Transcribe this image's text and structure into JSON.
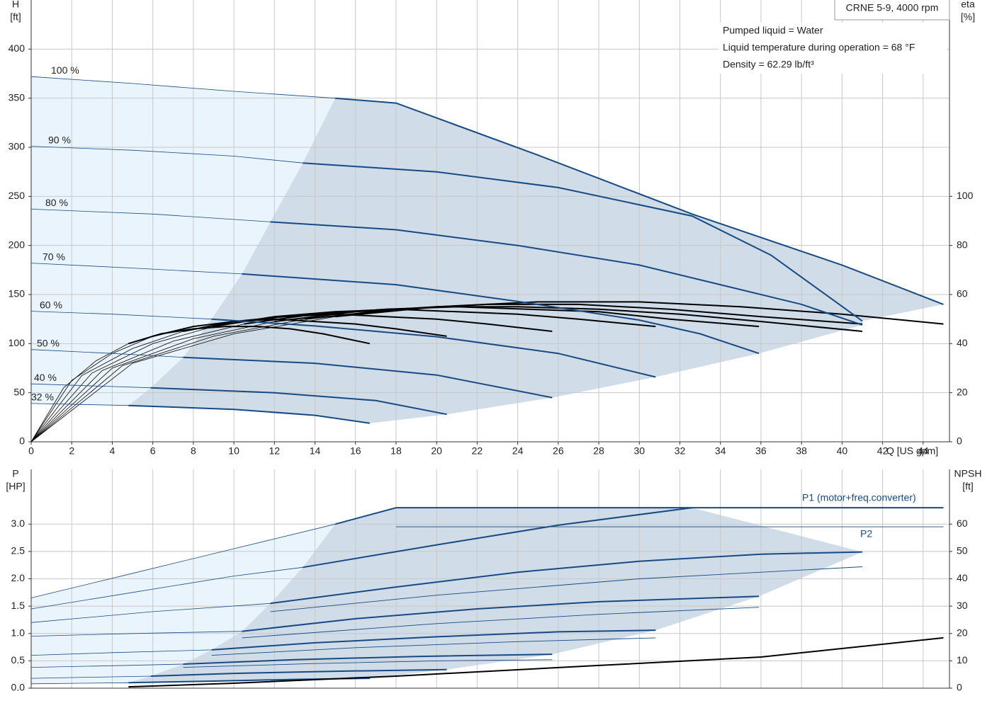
{
  "chart_data": [
    {
      "type": "line",
      "ylabel": "H",
      "yunit": "[ft]",
      "y2label": "eta",
      "y2unit": "[%]",
      "xlabel": "Q [US gpm]",
      "xlim": [
        0,
        45.3
      ],
      "xticks": [
        0,
        2,
        4,
        6,
        8,
        10,
        12,
        14,
        16,
        18,
        20,
        22,
        24,
        26,
        28,
        30,
        32,
        34,
        36,
        38,
        40,
        42,
        44
      ],
      "ylim": [
        0,
        450
      ],
      "yticks": [
        0,
        50,
        100,
        150,
        200,
        250,
        300,
        350,
        400
      ],
      "y2lim": [
        0,
        180
      ],
      "y2ticks": [
        0,
        20,
        40,
        60,
        80,
        100
      ],
      "grid": true,
      "annotations": {
        "model": "CRNE 5-9, 4000 rpm",
        "liquid": "Pumped liquid = Water",
        "temperature": "Liquid temperature during operation = 68 °F",
        "density": "Density = 62.29 lb/ft³"
      },
      "head_color": "#174a85",
      "eta_color": "#000000",
      "range_fill": "#d0dce8",
      "extension_fill": "#eaf4fd",
      "series": [
        {
          "name": "100 %",
          "x": [
            0,
            5,
            10,
            15,
            18,
            25,
            32.6,
            40,
            45
          ],
          "values": [
            372,
            365,
            357,
            350,
            345,
            292,
            232,
            180,
            140
          ],
          "bold_from": 15,
          "eta": {
            "axis": "y2",
            "x": [
              0,
              5,
              10,
              15,
              20,
              25,
              30,
              35,
              40,
              45
            ],
            "values": [
              0,
              32,
              44,
              51,
              55,
              57,
              57,
              55,
              52,
              48
            ]
          }
        },
        {
          "name": "90 %",
          "x": [
            0,
            5,
            10,
            13.4,
            20,
            26,
            32.6,
            36.5,
            41
          ],
          "values": [
            301,
            297,
            291,
            284,
            275,
            259,
            230,
            190,
            123
          ],
          "bold_from": 13.4,
          "eta": {
            "axis": "y2",
            "x": [
              0,
              4.5,
              9,
              13.5,
              18,
              22.5,
              27,
              31.5,
              36,
              41
            ],
            "values": [
              0,
              31,
              43,
              50,
              54,
              56,
              56,
              54,
              51,
              48
            ]
          }
        },
        {
          "name": "80 %",
          "x": [
            0,
            6,
            11.8,
            18,
            24,
            30,
            34,
            38,
            41
          ],
          "values": [
            237,
            232,
            224,
            216,
            200,
            180,
            160,
            140,
            119
          ],
          "bold_from": 11.8,
          "eta": {
            "axis": "y2",
            "x": [
              0,
              4,
              8,
              12,
              16,
              20,
              24,
              28,
              32,
              36,
              41
            ],
            "values": [
              0,
              30,
              42,
              49,
              53,
              55,
              55,
              54,
              52,
              49,
              45
            ]
          }
        },
        {
          "name": "70 %",
          "x": [
            0,
            5,
            10.4,
            18,
            24,
            30,
            33,
            35.9
          ],
          "values": [
            182,
            177,
            171,
            160,
            143,
            124,
            110,
            90
          ],
          "bold_from": 10.4,
          "eta": {
            "axis": "y2",
            "x": [
              0,
              3.5,
              7,
              10.5,
              14,
              17.5,
              21,
              24.5,
              28,
              31.5,
              35.9
            ],
            "values": [
              0,
              29,
              41,
              48,
              52,
              54,
              55,
              54,
              53,
              50,
              47
            ]
          }
        },
        {
          "name": "60 %",
          "x": [
            0,
            4,
            8.9,
            14,
            20,
            26,
            30.8
          ],
          "values": [
            133,
            130,
            125,
            118,
            107,
            90,
            66
          ],
          "bold_from": 8.9,
          "eta": {
            "axis": "y2",
            "x": [
              0,
              3,
              6,
              9,
              12,
              15,
              18,
              21,
              24,
              27,
              30.8
            ],
            "values": [
              0,
              28,
              40,
              47,
              51,
              53,
              54,
              53,
              52,
              50,
              47
            ]
          }
        },
        {
          "name": "50 %",
          "x": [
            0,
            4,
            7.5,
            14,
            20,
            25.7
          ],
          "values": [
            94,
            90,
            86,
            80,
            68,
            45
          ],
          "bold_from": 7.5,
          "eta": {
            "axis": "y2",
            "x": [
              0,
              2.5,
              5,
              7.5,
              10,
              12.5,
              15,
              17.5,
              20,
              22.5,
              25.7
            ],
            "values": [
              0,
              27,
              38,
              45,
              49,
              51,
              52,
              51,
              50,
              48,
              45
            ]
          }
        },
        {
          "name": "40 %",
          "x": [
            0,
            3,
            5.9,
            12,
            17,
            20.5
          ],
          "values": [
            59,
            57,
            55,
            50,
            42,
            28
          ],
          "bold_from": 5.9,
          "eta": {
            "axis": "y2",
            "x": [
              0,
              2,
              4,
              6,
              8,
              10,
              12,
              14,
              16,
              18,
              20.5
            ],
            "values": [
              0,
              25,
              36,
              43,
              47,
              49,
              50,
              49,
              48,
              46,
              43
            ]
          }
        },
        {
          "name": "32 %",
          "x": [
            0,
            2.5,
            4.8,
            10,
            14,
            16.7
          ],
          "values": [
            39,
            38,
            37,
            33,
            27,
            19
          ],
          "bold_from": 4.8,
          "eta": {
            "axis": "y2",
            "x": [
              0,
              1.6,
              3.2,
              4.8,
              6.4,
              8,
              9.6,
              11.2,
              12.8,
              14.4,
              16.7
            ],
            "values": [
              0,
              22,
              33,
              40,
              44,
              46,
              47,
              47,
              46,
              44,
              40
            ]
          }
        }
      ]
    },
    {
      "type": "line",
      "ylabel": "P",
      "yunit": "[HP]",
      "y2label": "NPSH",
      "y2unit": "[ft]",
      "xlim": [
        0,
        45.3
      ],
      "xticks": [
        0,
        2,
        4,
        6,
        8,
        10,
        12,
        14,
        16,
        18,
        20,
        22,
        24,
        26,
        28,
        30,
        32,
        34,
        36,
        38,
        40,
        42,
        44
      ],
      "ylim": [
        0,
        4.0
      ],
      "yticks": [
        {
          "value": 0,
          "label": "0.0"
        },
        {
          "value": 0.5,
          "label": "0.5"
        },
        {
          "value": 1,
          "label": "1.0"
        },
        {
          "value": 1.5,
          "label": "1.5"
        },
        {
          "value": 2,
          "label": "2.0"
        },
        {
          "value": 2.5,
          "label": "2.5"
        },
        {
          "value": 3,
          "label": "3.0"
        }
      ],
      "y2lim": [
        0,
        80
      ],
      "y2ticks": [
        0,
        10,
        20,
        30,
        40,
        50,
        60
      ],
      "grid": true,
      "range_fill": "#d0dce8",
      "extension_fill": "#eaf4fd",
      "series": [
        {
          "name": "P1 (motor+freq.converter)",
          "color": "#174a85",
          "curves": [
            {
              "x": [
                0,
                5,
                10,
                15,
                18,
                30,
                45
              ],
              "values": [
                1.65,
                2.1,
                2.55,
                3.0,
                3.3,
                3.3,
                3.3
              ],
              "bold_from": 15
            },
            {
              "x": [
                0,
                5,
                10,
                13.4,
                20,
                26,
                32.6
              ],
              "values": [
                1.45,
                1.75,
                2.05,
                2.21,
                2.62,
                2.98,
                3.3
              ],
              "bold_from": 13.4
            },
            {
              "x": [
                0,
                6,
                11.8,
                18,
                24,
                30,
                36,
                41
              ],
              "values": [
                1.2,
                1.4,
                1.55,
                1.85,
                2.12,
                2.32,
                2.45,
                2.49
              ],
              "bold_from": 11.8
            },
            {
              "x": [
                0,
                5,
                10.4,
                16,
                22,
                28,
                35.9
              ],
              "values": [
                0.95,
                1.0,
                1.04,
                1.27,
                1.45,
                1.58,
                1.68
              ],
              "bold_from": 10.4
            },
            {
              "x": [
                0,
                4,
                8.9,
                14,
                20,
                26,
                30.8
              ],
              "values": [
                0.6,
                0.65,
                0.7,
                0.83,
                0.94,
                1.03,
                1.06
              ],
              "bold_from": 8.9
            },
            {
              "x": [
                0,
                4,
                7.5,
                13,
                19,
                25.7
              ],
              "values": [
                0.38,
                0.41,
                0.44,
                0.52,
                0.58,
                0.62
              ],
              "bold_from": 7.5
            },
            {
              "x": [
                0,
                3,
                5.9,
                10,
                15,
                20.5
              ],
              "values": [
                0.18,
                0.2,
                0.22,
                0.27,
                0.31,
                0.34
              ],
              "bold_from": 5.9
            },
            {
              "x": [
                0,
                2.5,
                4.8,
                9,
                13,
                16.7
              ],
              "values": [
                0.08,
                0.09,
                0.1,
                0.13,
                0.16,
                0.18
              ],
              "bold_from": 4.8
            }
          ]
        },
        {
          "name": "P2",
          "color": "#174a85",
          "curves": [
            {
              "x": [
                18,
                30,
                45
              ],
              "values": [
                2.95,
                2.95,
                2.95
              ]
            },
            {
              "x": [
                11.8,
                20,
                30,
                41
              ],
              "values": [
                1.4,
                1.7,
                2.0,
                2.22
              ]
            },
            {
              "x": [
                10.4,
                20,
                28,
                35.9
              ],
              "values": [
                0.92,
                1.18,
                1.35,
                1.48
              ]
            },
            {
              "x": [
                8.9,
                16,
                24,
                30.8
              ],
              "values": [
                0.6,
                0.74,
                0.85,
                0.92
              ]
            },
            {
              "x": [
                7.5,
                14,
                20,
                25.7
              ],
              "values": [
                0.38,
                0.45,
                0.5,
                0.52
              ]
            }
          ]
        }
      ],
      "npsh": {
        "axis": "y2",
        "color": "#000000",
        "x": [
          4.8,
          10,
          18,
          28,
          36,
          45
        ],
        "values": [
          0.5,
          1.8,
          4.4,
          8.3,
          11.4,
          18.4
        ]
      }
    }
  ]
}
